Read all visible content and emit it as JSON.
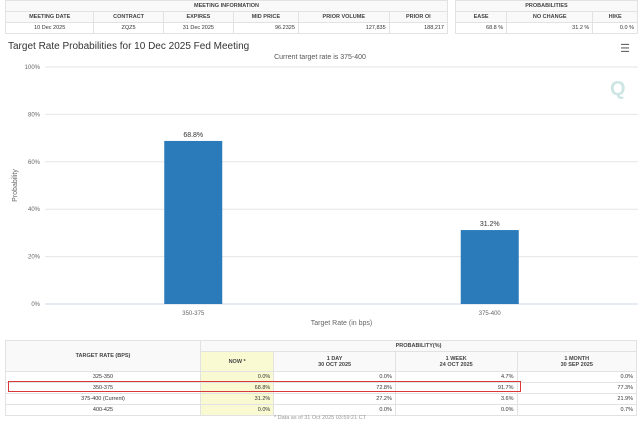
{
  "meeting_info": {
    "header": "MEETING INFORMATION",
    "columns": [
      "MEETING DATE",
      "CONTRACT",
      "EXPIRES",
      "MID PRICE",
      "PRIOR VOLUME",
      "PRIOR OI"
    ],
    "values": [
      "10 Dec 2025",
      "ZQZ5",
      "31 Dec 2025",
      "96.2325",
      "127,835",
      "188,217"
    ]
  },
  "probabilities": {
    "header": "PROBABILITIES",
    "columns": [
      "EASE",
      "NO CHANGE",
      "HIKE"
    ],
    "values": [
      "68.8 %",
      "31.2 %",
      "0.0 %"
    ]
  },
  "chart_title": "Target Rate Probabilities for 10 Dec 2025 Fed Meeting",
  "menu_icon": "hamburger-icon",
  "chart_data": {
    "type": "bar",
    "subtitle": "Current target rate is 375-400",
    "categories": [
      "350-375",
      "375-400"
    ],
    "values": [
      68.8,
      31.2
    ],
    "data_labels": [
      "68.8%",
      "31.2%"
    ],
    "xlabel": "Target Rate (in bps)",
    "ylabel": "Probability",
    "ylim": [
      0,
      100
    ],
    "yticks": [
      "0%",
      "20%",
      "40%",
      "60%",
      "80%",
      "100%"
    ],
    "color": "#2b7bba"
  },
  "logo_text": "Q",
  "rate_table": {
    "rate_header": "TARGET RATE (BPS)",
    "prob_header": "PROBABILITY(%)",
    "columns": [
      {
        "l1": "NOW *",
        "l2": ""
      },
      {
        "l1": "1 DAY",
        "l2": "30 OCT 2025"
      },
      {
        "l1": "1 WEEK",
        "l2": "24 OCT 2025"
      },
      {
        "l1": "1 MONTH",
        "l2": "30 SEP 2025"
      }
    ],
    "rows": [
      {
        "rate": "325-350",
        "v": [
          "0.0%",
          "0.0%",
          "4.7%",
          "0.0%"
        ]
      },
      {
        "rate": "350-375",
        "v": [
          "68.8%",
          "72.8%",
          "91.7%",
          "77.3%"
        ]
      },
      {
        "rate": "375-400 (Current)",
        "v": [
          "31.2%",
          "27.2%",
          "3.6%",
          "21.9%"
        ]
      },
      {
        "rate": "400-425",
        "v": [
          "0.0%",
          "0.0%",
          "0.0%",
          "0.7%"
        ]
      }
    ],
    "note": "* Data as of 31 Oct 2025 03:59:21 CT"
  }
}
